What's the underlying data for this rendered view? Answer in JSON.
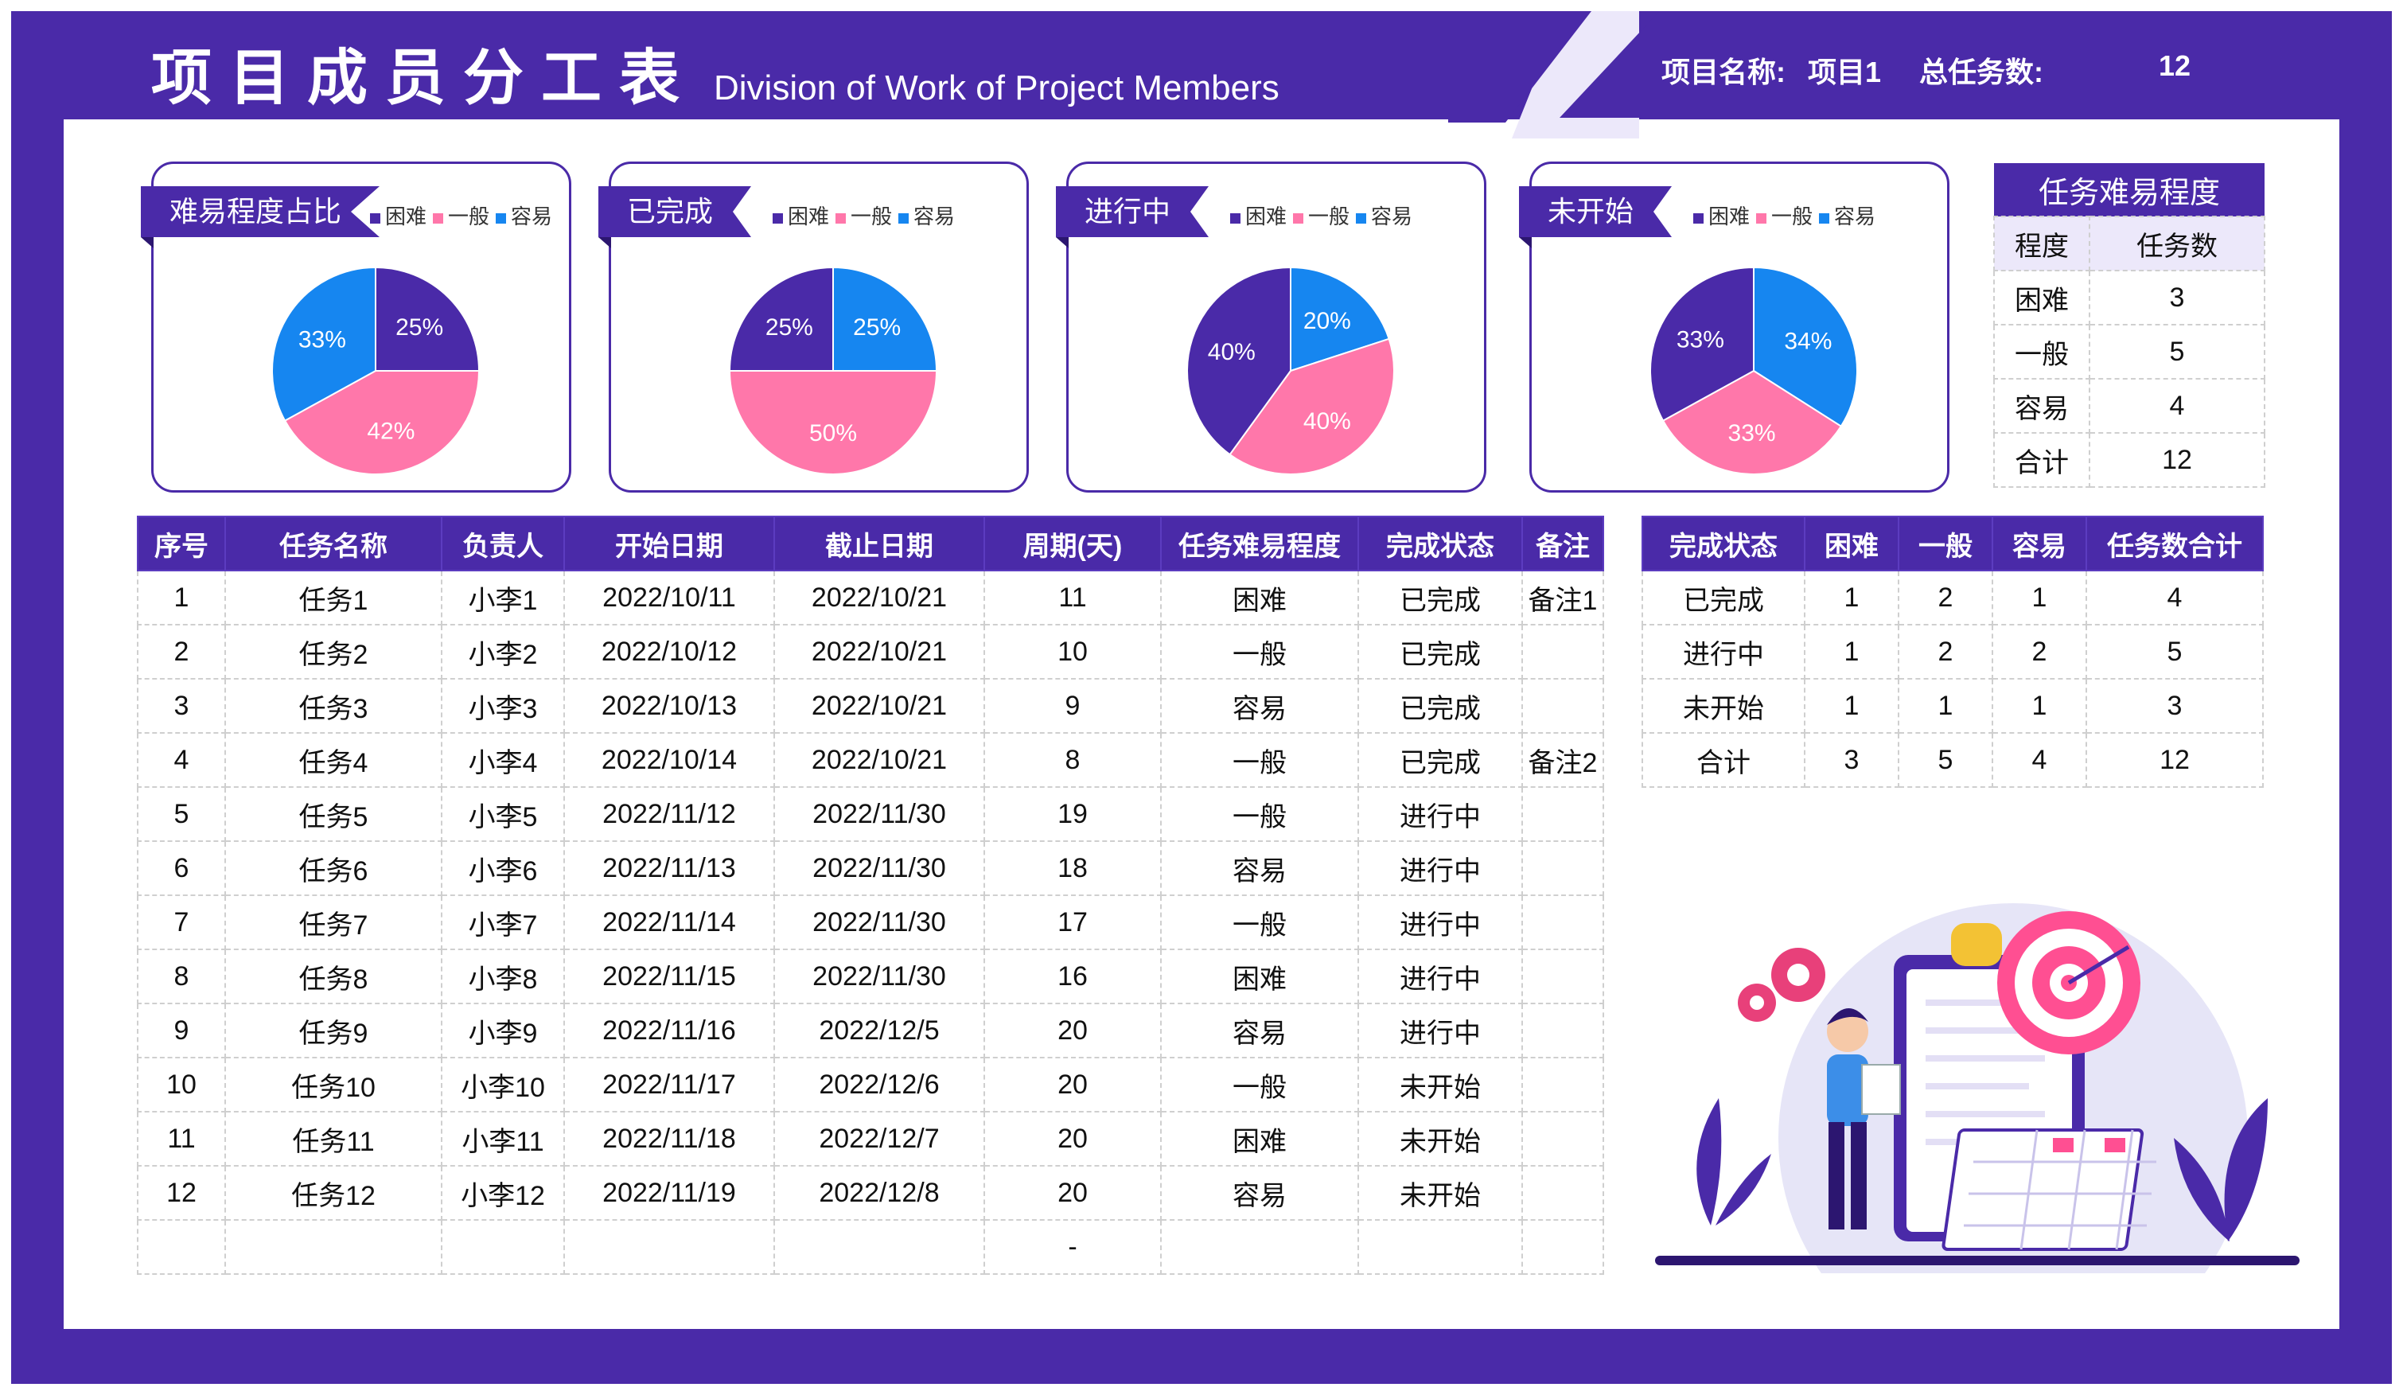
{
  "header": {
    "title_cn": "项目成员分工表",
    "title_en": "Division of Work of Project Members",
    "project_label": "项目名称:",
    "project_name": "项目1",
    "total_label": "总任务数:",
    "total_value": "12"
  },
  "colors": {
    "hard": "#4a2aa8",
    "normal": "#ff77aa",
    "easy": "#1686f0",
    "brand": "#4a2aa8"
  },
  "legend": {
    "hard": "困难",
    "normal": "一般",
    "easy": "容易"
  },
  "chart_data": [
    {
      "type": "pie",
      "title": "难易程度占比",
      "labels": [
        "困难",
        "一般",
        "容易"
      ],
      "values": [
        25,
        42,
        33
      ]
    },
    {
      "type": "pie",
      "title": "已完成",
      "labels": [
        "困难",
        "一般",
        "容易"
      ],
      "values": [
        25,
        50,
        25
      ]
    },
    {
      "type": "pie",
      "title": "进行中",
      "labels": [
        "困难",
        "一般",
        "容易"
      ],
      "values": [
        40,
        40,
        20
      ]
    },
    {
      "type": "pie",
      "title": "未开始",
      "labels": [
        "困难",
        "一般",
        "容易"
      ],
      "values": [
        33,
        33,
        34
      ]
    }
  ],
  "main_table": {
    "headers": [
      "序号",
      "任务名称",
      "负责人",
      "开始日期",
      "截止日期",
      "周期(天)",
      "任务难易程度",
      "完成状态",
      "备注"
    ],
    "rows": [
      [
        "1",
        "任务1",
        "小李1",
        "2022/10/11",
        "2022/10/21",
        "11",
        "困难",
        "已完成",
        "备注1"
      ],
      [
        "2",
        "任务2",
        "小李2",
        "2022/10/12",
        "2022/10/21",
        "10",
        "一般",
        "已完成",
        ""
      ],
      [
        "3",
        "任务3",
        "小李3",
        "2022/10/13",
        "2022/10/21",
        "9",
        "容易",
        "已完成",
        ""
      ],
      [
        "4",
        "任务4",
        "小李4",
        "2022/10/14",
        "2022/10/21",
        "8",
        "一般",
        "已完成",
        "备注2"
      ],
      [
        "5",
        "任务5",
        "小李5",
        "2022/11/12",
        "2022/11/30",
        "19",
        "一般",
        "进行中",
        ""
      ],
      [
        "6",
        "任务6",
        "小李6",
        "2022/11/13",
        "2022/11/30",
        "18",
        "容易",
        "进行中",
        ""
      ],
      [
        "7",
        "任务7",
        "小李7",
        "2022/11/14",
        "2022/11/30",
        "17",
        "一般",
        "进行中",
        ""
      ],
      [
        "8",
        "任务8",
        "小李8",
        "2022/11/15",
        "2022/11/30",
        "16",
        "困难",
        "进行中",
        ""
      ],
      [
        "9",
        "任务9",
        "小李9",
        "2022/11/16",
        "2022/12/5",
        "20",
        "容易",
        "进行中",
        ""
      ],
      [
        "10",
        "任务10",
        "小李10",
        "2022/11/17",
        "2022/12/6",
        "20",
        "一般",
        "未开始",
        ""
      ],
      [
        "11",
        "任务11",
        "小李11",
        "2022/11/18",
        "2022/12/7",
        "20",
        "困难",
        "未开始",
        ""
      ],
      [
        "12",
        "任务12",
        "小李12",
        "2022/11/19",
        "2022/12/8",
        "20",
        "容易",
        "未开始",
        ""
      ],
      [
        "",
        "",
        "",
        "",
        "",
        "-",
        "",
        "",
        ""
      ]
    ]
  },
  "difficulty_table": {
    "caption": "任务难易程度",
    "headers": [
      "程度",
      "任务数"
    ],
    "rows": [
      [
        "困难",
        "3"
      ],
      [
        "一般",
        "5"
      ],
      [
        "容易",
        "4"
      ],
      [
        "合计",
        "12"
      ]
    ]
  },
  "status_table": {
    "headers": [
      "完成状态",
      "困难",
      "一般",
      "容易",
      "任务数合计"
    ],
    "rows": [
      [
        "已完成",
        "1",
        "2",
        "1",
        "4"
      ],
      [
        "进行中",
        "1",
        "2",
        "2",
        "5"
      ],
      [
        "未开始",
        "1",
        "1",
        "1",
        "3"
      ],
      [
        "合计",
        "3",
        "5",
        "4",
        "12"
      ]
    ]
  }
}
